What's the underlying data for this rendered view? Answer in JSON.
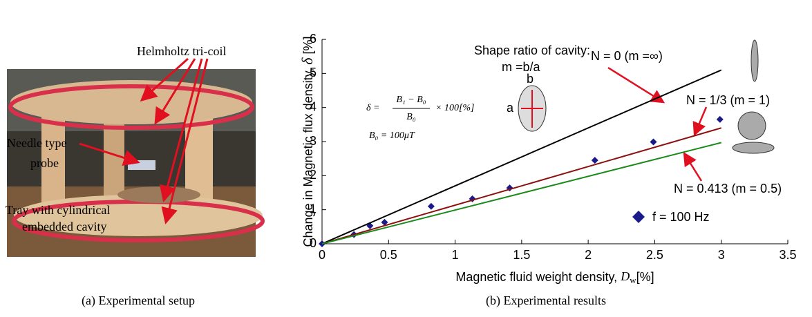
{
  "chart_data": {
    "type": "scatter",
    "xlabel": [
      "Magnetic fluid weight density, ",
      "D",
      "w",
      "[%]"
    ],
    "ylabel": [
      "Change in Magnetic flux density, ",
      "δ",
      " [%]"
    ],
    "xlim": [
      0,
      3.5
    ],
    "xticks": [
      0,
      0.5,
      1,
      1.5,
      2,
      2.5,
      3,
      3.5
    ],
    "ylim": [
      0,
      6
    ],
    "yticks": [
      0,
      1,
      2,
      3,
      4,
      5,
      6
    ],
    "series": [
      {
        "name": "f = 100 Hz",
        "color": "#1a1a8c",
        "x": [
          0,
          0.24,
          0.36,
          0.47,
          0.82,
          1.13,
          1.41,
          2.05,
          2.49,
          2.99
        ],
        "values": [
          0,
          0.27,
          0.53,
          0.63,
          1.1,
          1.32,
          1.64,
          2.45,
          2.99,
          3.65
        ]
      },
      {
        "name": "N = 0 (m =∞)",
        "color": "#000000",
        "line": true,
        "x": [
          0,
          3
        ],
        "values": [
          0,
          5.1
        ]
      },
      {
        "name": "N = 1/3 (m = 1)",
        "color": "#8b1010",
        "line": true,
        "x": [
          0,
          3
        ],
        "values": [
          0,
          3.4
        ]
      },
      {
        "name": "N = 0.413 (m = 0.5)",
        "color": "#1a8a1a",
        "line": true,
        "x": [
          0,
          3
        ],
        "values": [
          0,
          2.97
        ]
      }
    ],
    "annotations": [
      "Shape ratio of cavity:",
      "m =b/a",
      "b",
      "a"
    ],
    "formula": {
      "lhs": "δ =",
      "numerator": "B₁ − B₀",
      "denominator": "B₀",
      "rhs": "× 100[%]",
      "base": "B₀ = 100μT"
    },
    "caption": "(b) Experimental results"
  },
  "photo": {
    "labels": [
      "Helmholtz tri-coil",
      "Needle type",
      "probe",
      "Tray with cylindrical",
      "embedded cavity"
    ],
    "caption": "(a) Experimental setup"
  }
}
